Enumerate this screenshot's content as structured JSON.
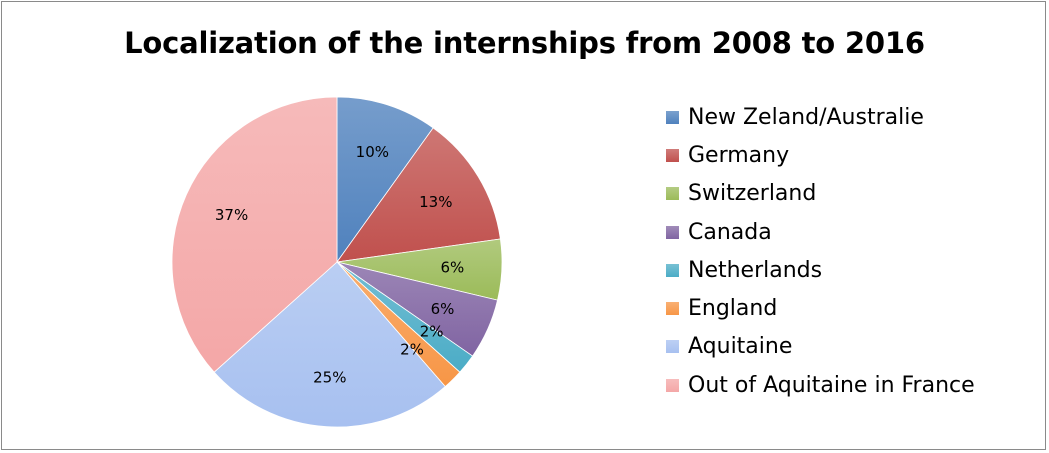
{
  "chart_data": {
    "type": "pie",
    "title": "Localization of the internships from 2008 to 2016",
    "legend_position": "right",
    "slices": [
      {
        "label": "New Zeland/Australie",
        "value": 10,
        "value_label": "10%",
        "color": "#4f81bd"
      },
      {
        "label": "Germany",
        "value": 13,
        "value_label": "13%",
        "color": "#c0504d"
      },
      {
        "label": "Switzerland",
        "value": 6,
        "value_label": "6%",
        "color": "#9bbb59"
      },
      {
        "label": "Canada",
        "value": 6,
        "value_label": "6%",
        "color": "#8064a2"
      },
      {
        "label": "Netherlands",
        "value": 2,
        "value_label": "2%",
        "color": "#4bacc6"
      },
      {
        "label": "England",
        "value": 2,
        "value_label": "2%",
        "color": "#f79646"
      },
      {
        "label": "Aquitaine",
        "value": 25,
        "value_label": "25%",
        "color": "#a7c0f0"
      },
      {
        "label": "Out of Aquitaine in France",
        "value": 37,
        "value_label": "37%",
        "color": "#f4a7a7"
      }
    ]
  }
}
